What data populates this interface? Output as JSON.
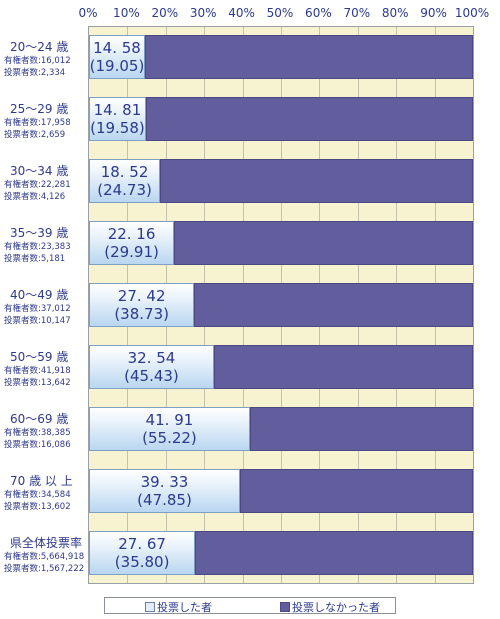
{
  "chart_data": {
    "type": "bar",
    "orientation": "horizontal",
    "stacked": true,
    "x_ticks": [
      "0%",
      "10%",
      "20%",
      "30%",
      "40%",
      "50%",
      "60%",
      "70%",
      "80%",
      "90%",
      "100%"
    ],
    "xlim": [
      0,
      100
    ],
    "legend": {
      "position": "bottom",
      "voted_label": "投票した者",
      "notvoted_label": "投票しなかった者"
    },
    "colors": {
      "voted": "#d9e9f8",
      "notvoted": "#625e9e",
      "background": "#f7f2cf"
    },
    "rows": [
      {
        "label": "20～24 歳",
        "eligible_label": "有権者数:",
        "eligible": "16,012",
        "voters_label": "投票者数:",
        "voters": "2,334",
        "value": 14.58,
        "value_text": "14. 58",
        "prev_text": "(19.05)"
      },
      {
        "label": "25～29 歳",
        "eligible_label": "有権者数:",
        "eligible": "17,958",
        "voters_label": "投票者数:",
        "voters": "2,659",
        "value": 14.81,
        "value_text": "14. 81",
        "prev_text": "(19.58)"
      },
      {
        "label": "30～34 歳",
        "eligible_label": "有権者数:",
        "eligible": "22,281",
        "voters_label": "投票者数:",
        "voters": "4,126",
        "value": 18.52,
        "value_text": "18. 52",
        "prev_text": "(24.73)"
      },
      {
        "label": "35～39 歳",
        "eligible_label": "有権者数:",
        "eligible": "23,383",
        "voters_label": "投票者数:",
        "voters": "5,181",
        "value": 22.16,
        "value_text": "22. 16",
        "prev_text": "(29.91)"
      },
      {
        "label": "40～49 歳",
        "eligible_label": "有権者数:",
        "eligible": "37,012",
        "voters_label": "投票者数:",
        "voters": "10,147",
        "value": 27.42,
        "value_text": "27. 42",
        "prev_text": "(38.73)"
      },
      {
        "label": "50～59 歳",
        "eligible_label": "有権者数:",
        "eligible": "41,918",
        "voters_label": "投票者数:",
        "voters": "13,642",
        "value": 32.54,
        "value_text": "32. 54",
        "prev_text": "(45.43)"
      },
      {
        "label": "60～69 歳",
        "eligible_label": "有権者数:",
        "eligible": "38,385",
        "voters_label": "投票者数:",
        "voters": "16,086",
        "value": 41.91,
        "value_text": "41. 91",
        "prev_text": "(55.22)"
      },
      {
        "label": "70 歳 以 上",
        "eligible_label": "有権者数:",
        "eligible": "34,584",
        "voters_label": "投票者数:",
        "voters": "13,602",
        "value": 39.33,
        "value_text": "39. 33",
        "prev_text": "(47.85)"
      },
      {
        "label": "県全体投票率",
        "eligible_label": "有権者数:",
        "eligible": "5,664,918",
        "voters_label": "投票者数:",
        "voters": "1,567,222",
        "value": 27.67,
        "value_text": "27. 67",
        "prev_text": "(35.80)"
      }
    ]
  }
}
